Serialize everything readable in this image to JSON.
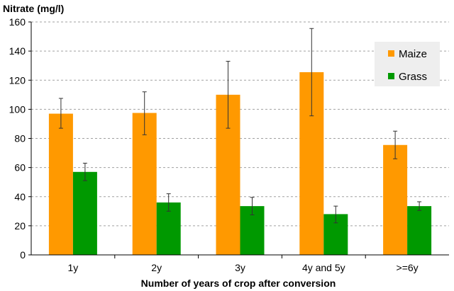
{
  "chart_data": {
    "type": "bar",
    "title": "",
    "ylabel": "Nitrate (mg/l)",
    "xlabel": "Number of years of crop after conversion",
    "categories": [
      "1y",
      "2y",
      "3y",
      "4y and 5y",
      ">=6y"
    ],
    "ylim": [
      0,
      160
    ],
    "yticks": [
      0,
      20,
      40,
      60,
      80,
      100,
      120,
      140,
      160
    ],
    "grid": true,
    "legend_position": "top-right",
    "series": [
      {
        "name": "Maize",
        "color": "#ff9900",
        "values": [
          97,
          97.5,
          110,
          125.5,
          75.5
        ],
        "error_low": [
          87,
          82.5,
          87,
          95.5,
          66
        ],
        "error_high": [
          107.5,
          112,
          133,
          155.5,
          85
        ]
      },
      {
        "name": "Grass",
        "color": "#009900",
        "values": [
          57,
          36,
          33.5,
          28,
          33.5
        ],
        "error_low": [
          51,
          30,
          27.5,
          22,
          30.5
        ],
        "error_high": [
          63,
          42,
          39.5,
          33.5,
          36.5
        ]
      }
    ]
  }
}
